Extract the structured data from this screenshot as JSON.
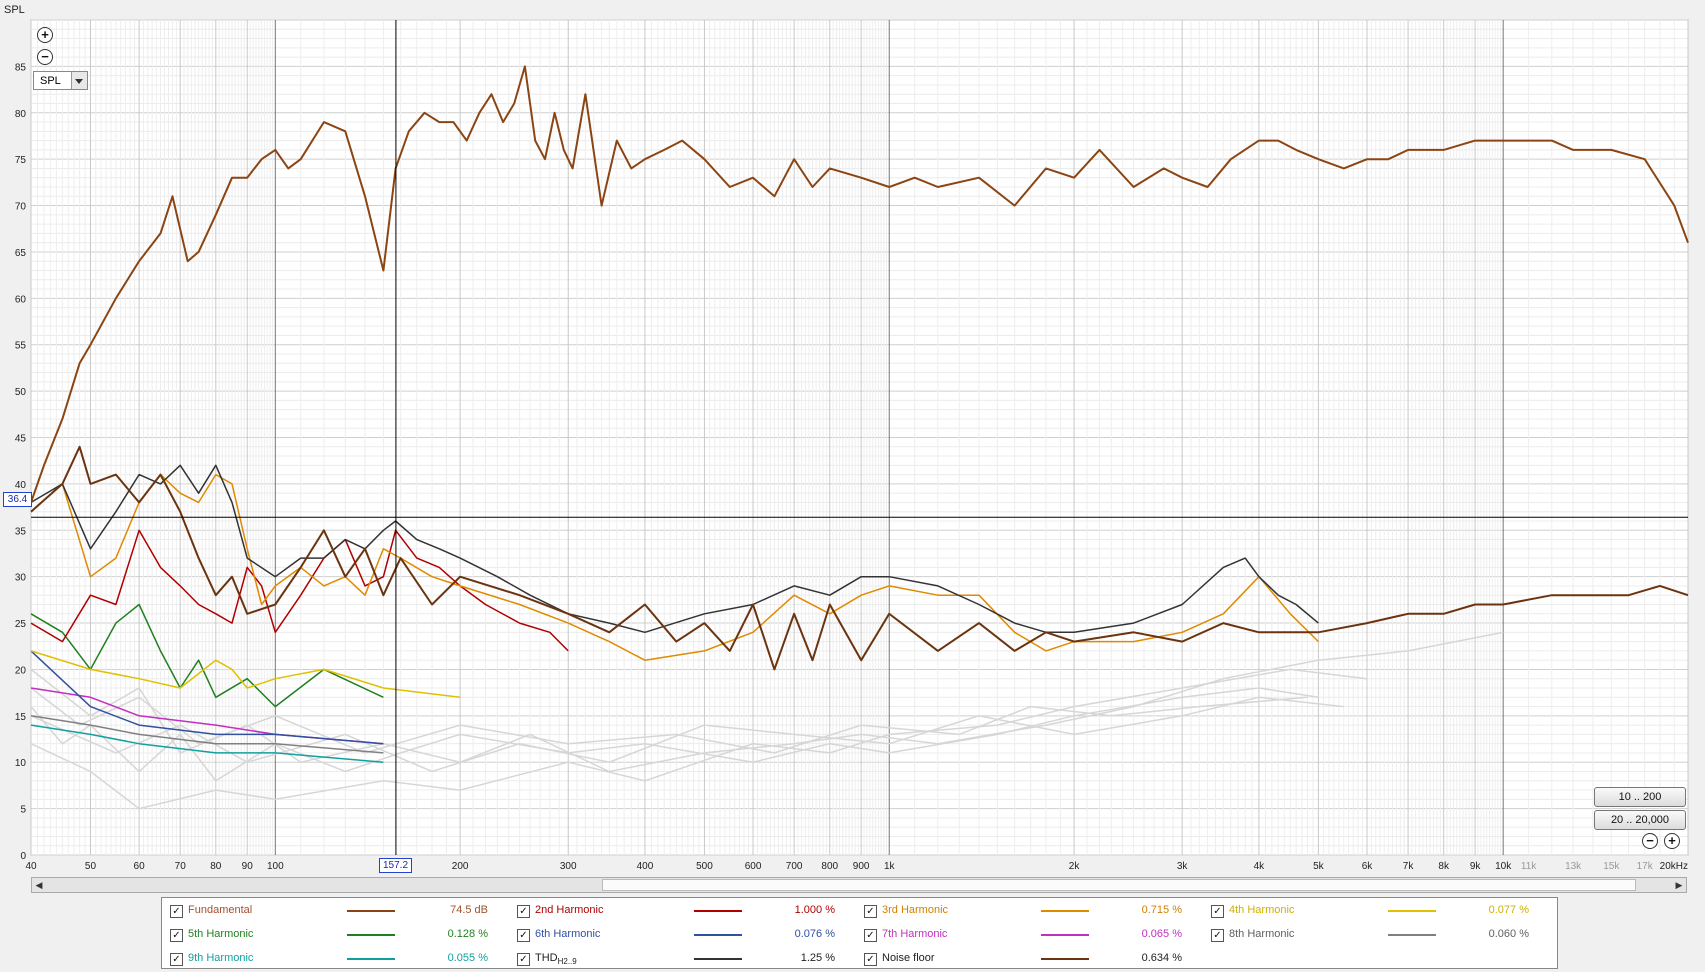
{
  "header": {
    "y_axis_title": "SPL"
  },
  "toolbar": {
    "zoom_in_icon": "zoom-in-icon",
    "zoom_out_icon": "zoom-out-icon",
    "select_value": "SPL",
    "range_button_1": "10 .. 200",
    "range_button_2": "20 .. 20,000"
  },
  "cursor": {
    "x_readout": "157.2",
    "y_readout": "36.4",
    "x_value": 157.2,
    "y_value": 36.4
  },
  "chart_data": {
    "type": "line",
    "title": "",
    "xlabel": "",
    "ylabel": "SPL",
    "x_scale": "log",
    "xlim": [
      40,
      20000
    ],
    "ylim": [
      0,
      90
    ],
    "grid": true,
    "y_ticks": [
      "0",
      "5",
      "10",
      "15",
      "20",
      "25",
      "30",
      "35",
      "40",
      "45",
      "50",
      "55",
      "60",
      "65",
      "70",
      "75",
      "80",
      "85"
    ],
    "x_ticks": [
      {
        "v": 40,
        "t": "40"
      },
      {
        "v": 50,
        "t": "50"
      },
      {
        "v": 60,
        "t": "60"
      },
      {
        "v": 70,
        "t": "70"
      },
      {
        "v": 80,
        "t": "80"
      },
      {
        "v": 90,
        "t": "90"
      },
      {
        "v": 100,
        "t": "100"
      },
      {
        "v": 200,
        "t": "200"
      },
      {
        "v": 300,
        "t": "300"
      },
      {
        "v": 400,
        "t": "400"
      },
      {
        "v": 500,
        "t": "500"
      },
      {
        "v": 600,
        "t": "600"
      },
      {
        "v": 700,
        "t": "700"
      },
      {
        "v": 800,
        "t": "800"
      },
      {
        "v": 900,
        "t": "900"
      },
      {
        "v": 1000,
        "t": "1k"
      },
      {
        "v": 2000,
        "t": "2k"
      },
      {
        "v": 3000,
        "t": "3k"
      },
      {
        "v": 4000,
        "t": "4k"
      },
      {
        "v": 5000,
        "t": "5k"
      },
      {
        "v": 6000,
        "t": "6k"
      },
      {
        "v": 7000,
        "t": "7k"
      },
      {
        "v": 8000,
        "t": "8k"
      },
      {
        "v": 9000,
        "t": "9k"
      },
      {
        "v": 10000,
        "t": "10k"
      },
      {
        "v": 11000,
        "t": "11k"
      },
      {
        "v": 13000,
        "t": "13k"
      },
      {
        "v": 15000,
        "t": "15k"
      },
      {
        "v": 17000,
        "t": "17k"
      },
      {
        "v": 20000,
        "t": "20kHz"
      }
    ],
    "series": [
      {
        "name": "Fundamental",
        "color": "#8b4513",
        "x": [
          40,
          42,
          45,
          48,
          50,
          55,
          60,
          65,
          68,
          72,
          75,
          80,
          85,
          90,
          95,
          100,
          105,
          110,
          120,
          130,
          140,
          150,
          157,
          165,
          175,
          185,
          195,
          205,
          215,
          225,
          235,
          245,
          255,
          265,
          275,
          285,
          295,
          305,
          320,
          340,
          360,
          380,
          400,
          430,
          460,
          500,
          550,
          600,
          650,
          700,
          750,
          800,
          900,
          1000,
          1100,
          1200,
          1400,
          1600,
          1800,
          2000,
          2200,
          2500,
          2800,
          3000,
          3300,
          3600,
          4000,
          4300,
          4600,
          5000,
          5500,
          6000,
          6500,
          7000,
          8000,
          9000,
          10000,
          11000,
          12000,
          13000,
          15000,
          17000,
          19000,
          20000
        ],
        "y": [
          38,
          42,
          47,
          53,
          55,
          60,
          64,
          67,
          71,
          64,
          65,
          69,
          73,
          73,
          75,
          76,
          74,
          75,
          79,
          78,
          71,
          63,
          74,
          78,
          80,
          79,
          79,
          77,
          80,
          82,
          79,
          81,
          85,
          77,
          75,
          80,
          76,
          74,
          82,
          70,
          77,
          74,
          75,
          76,
          77,
          75,
          72,
          73,
          71,
          75,
          72,
          74,
          73,
          72,
          73,
          72,
          73,
          70,
          74,
          73,
          76,
          72,
          74,
          73,
          72,
          75,
          77,
          77,
          76,
          75,
          74,
          75,
          75,
          76,
          76,
          77,
          77,
          77,
          77,
          76,
          76,
          75,
          70,
          66
        ]
      },
      {
        "name": "2nd Harmonic",
        "color": "#b00000",
        "x": [
          40,
          45,
          50,
          55,
          60,
          65,
          70,
          75,
          80,
          85,
          90,
          95,
          100,
          110,
          120,
          130,
          140,
          150,
          157,
          170,
          185,
          200,
          220,
          250,
          280,
          300
        ],
        "y": [
          25,
          23,
          28,
          27,
          35,
          31,
          29,
          27,
          26,
          25,
          31,
          29,
          24,
          28,
          32,
          34,
          29,
          30,
          35,
          32,
          31,
          29,
          27,
          25,
          24,
          22
        ]
      },
      {
        "name": "3rd Harmonic",
        "color": "#e08a00",
        "x": [
          40,
          45,
          50,
          55,
          60,
          65,
          70,
          75,
          80,
          85,
          90,
          95,
          100,
          110,
          120,
          130,
          140,
          150,
          160,
          180,
          200,
          250,
          300,
          350,
          400,
          500,
          600,
          700,
          800,
          900,
          1000,
          1200,
          1400,
          1600,
          1800,
          2000,
          2500,
          3000,
          3500,
          4000,
          4500,
          5000
        ],
        "y": [
          37,
          40,
          30,
          32,
          38,
          41,
          39,
          38,
          41,
          40,
          33,
          27,
          29,
          31,
          29,
          30,
          28,
          33,
          32,
          30,
          29,
          27,
          25,
          23,
          21,
          22,
          24,
          28,
          26,
          28,
          29,
          28,
          28,
          24,
          22,
          23,
          23,
          24,
          26,
          30,
          26,
          23
        ]
      },
      {
        "name": "4th Harmonic",
        "color": "#e0c000",
        "x": [
          40,
          50,
          60,
          70,
          80,
          85,
          90,
          100,
          120,
          150,
          200
        ],
        "y": [
          22,
          20,
          19,
          18,
          21,
          20,
          18,
          19,
          20,
          18,
          17
        ]
      },
      {
        "name": "5th Harmonic",
        "color": "#208020",
        "x": [
          40,
          45,
          50,
          55,
          60,
          65,
          70,
          75,
          80,
          90,
          100,
          120,
          150
        ],
        "y": [
          26,
          24,
          20,
          25,
          27,
          22,
          18,
          21,
          17,
          19,
          16,
          20,
          17
        ]
      },
      {
        "name": "6th Harmonic",
        "color": "#3050a0",
        "x": [
          40,
          50,
          60,
          80,
          100,
          150
        ],
        "y": [
          22,
          16,
          14,
          13,
          13,
          12
        ]
      },
      {
        "name": "7th Harmonic",
        "color": "#c030c0",
        "x": [
          40,
          50,
          60,
          80,
          100,
          150
        ],
        "y": [
          18,
          17,
          15,
          14,
          13,
          12
        ]
      },
      {
        "name": "8th Harmonic",
        "color": "#808080",
        "x": [
          40,
          50,
          60,
          80,
          100,
          150
        ],
        "y": [
          15,
          14,
          13,
          12,
          12,
          11
        ]
      },
      {
        "name": "9th Harmonic",
        "color": "#10a0a0",
        "x": [
          40,
          50,
          60,
          80,
          100,
          150
        ],
        "y": [
          14,
          13,
          12,
          11,
          11,
          10
        ]
      },
      {
        "name": "THD",
        "color": "#333333",
        "x": [
          40,
          45,
          50,
          55,
          60,
          65,
          70,
          75,
          80,
          85,
          90,
          100,
          110,
          120,
          130,
          140,
          150,
          157,
          170,
          185,
          200,
          230,
          260,
          300,
          350,
          400,
          500,
          600,
          700,
          800,
          900,
          1000,
          1200,
          1400,
          1600,
          1800,
          2000,
          2500,
          3000,
          3500,
          3800,
          4000,
          4300,
          4600,
          5000
        ],
        "y": [
          38,
          40,
          33,
          37,
          41,
          40,
          42,
          39,
          42,
          38,
          32,
          30,
          32,
          32,
          34,
          33,
          35,
          36,
          34,
          33,
          32,
          30,
          28,
          26,
          25,
          24,
          26,
          27,
          29,
          28,
          30,
          30,
          29,
          27,
          25,
          24,
          24,
          25,
          27,
          31,
          32,
          30,
          28,
          27,
          25
        ]
      },
      {
        "name": "Noise floor",
        "color": "#6b3410",
        "x": [
          40,
          45,
          48,
          50,
          55,
          60,
          65,
          70,
          75,
          80,
          85,
          90,
          100,
          110,
          120,
          130,
          140,
          150,
          160,
          180,
          200,
          250,
          300,
          350,
          400,
          450,
          500,
          550,
          600,
          650,
          700,
          750,
          800,
          900,
          1000,
          1200,
          1400,
          1600,
          1800,
          2000,
          2500,
          3000,
          3500,
          4000,
          5000,
          6000,
          7000,
          8000,
          9000,
          10000,
          12000,
          14000,
          16000,
          18000,
          20000
        ],
        "y": [
          37,
          40,
          44,
          40,
          41,
          38,
          41,
          37,
          32,
          28,
          30,
          26,
          27,
          31,
          35,
          30,
          33,
          28,
          32,
          27,
          30,
          28,
          26,
          24,
          27,
          23,
          25,
          22,
          27,
          20,
          26,
          21,
          27,
          21,
          26,
          22,
          25,
          22,
          24,
          23,
          24,
          23,
          25,
          24,
          24,
          25,
          26,
          26,
          27,
          27,
          28,
          28,
          28,
          29,
          28
        ]
      }
    ]
  },
  "legend": [
    {
      "name": "Fundamental",
      "value": "74.5 dB",
      "name_color": "#a0522d",
      "value_color": "#a0522d",
      "line_color": "#8b4513"
    },
    {
      "name": "2nd Harmonic",
      "value": "1.000 %",
      "name_color": "#b00000",
      "value_color": "#b00000",
      "line_color": "#b00000"
    },
    {
      "name": "3rd Harmonic",
      "value": "0.715 %",
      "name_color": "#d08000",
      "value_color": "#d08000",
      "line_color": "#e08a00"
    },
    {
      "name": "4th Harmonic",
      "value": "0.077 %",
      "name_color": "#d0b000",
      "value_color": "#d0b000",
      "line_color": "#e0c000"
    },
    {
      "name": "5th Harmonic",
      "value": "0.128 %",
      "name_color": "#208020",
      "value_color": "#208020",
      "line_color": "#208020"
    },
    {
      "name": "6th Harmonic",
      "value": "0.076 %",
      "name_color": "#3050a0",
      "value_color": "#3050a0",
      "line_color": "#3050a0"
    },
    {
      "name": "7th Harmonic",
      "value": "0.065 %",
      "name_color": "#c030c0",
      "value_color": "#c030c0",
      "line_color": "#c030c0"
    },
    {
      "name": "8th Harmonic",
      "value": "0.060 %",
      "name_color": "#606060",
      "value_color": "#606060",
      "line_color": "#808080"
    },
    {
      "name": "9th Harmonic",
      "value": "0.055 %",
      "name_color": "#10a0a0",
      "value_color": "#10a0a0",
      "line_color": "#10a0a0"
    },
    {
      "name": "THD",
      "sub": "H2..9",
      "value": "1.25 %",
      "name_color": "#222222",
      "value_color": "#222222",
      "line_color": "#333333"
    },
    {
      "name": "Noise floor",
      "value": "0.634 %",
      "name_color": "#222222",
      "value_color": "#222222",
      "line_color": "#6b3410"
    }
  ]
}
